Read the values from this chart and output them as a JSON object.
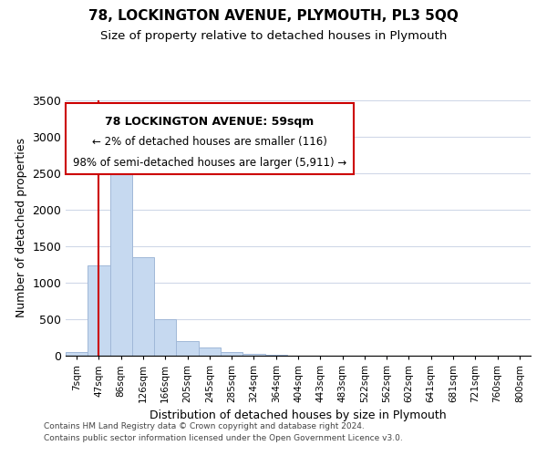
{
  "title": "78, LOCKINGTON AVENUE, PLYMOUTH, PL3 5QQ",
  "subtitle": "Size of property relative to detached houses in Plymouth",
  "xlabel": "Distribution of detached houses by size in Plymouth",
  "ylabel": "Number of detached properties",
  "bar_labels": [
    "7sqm",
    "47sqm",
    "86sqm",
    "126sqm",
    "166sqm",
    "205sqm",
    "245sqm",
    "285sqm",
    "324sqm",
    "364sqm",
    "404sqm",
    "443sqm",
    "483sqm",
    "522sqm",
    "562sqm",
    "602sqm",
    "641sqm",
    "681sqm",
    "721sqm",
    "760sqm",
    "800sqm"
  ],
  "bar_heights": [
    50,
    1240,
    2580,
    1350,
    500,
    200,
    110,
    50,
    30,
    10,
    5,
    2,
    1,
    0,
    0,
    0,
    0,
    0,
    0,
    0,
    0
  ],
  "bar_color": "#c6d9f0",
  "bar_edge_color": "#a0b8d8",
  "vline_x": 1,
  "vline_color": "#cc0000",
  "ylim": [
    0,
    3500
  ],
  "annotation_title": "78 LOCKINGTON AVENUE: 59sqm",
  "annotation_line1": "← 2% of detached houses are smaller (116)",
  "annotation_line2": "98% of semi-detached houses are larger (5,911) →",
  "footer_line1": "Contains HM Land Registry data © Crown copyright and database right 2024.",
  "footer_line2": "Contains public sector information licensed under the Open Government Licence v3.0."
}
